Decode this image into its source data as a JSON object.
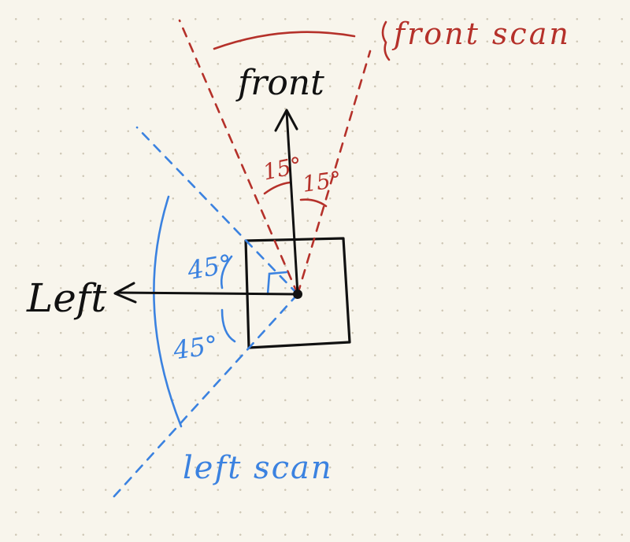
{
  "labels": {
    "front": "front",
    "left": "Left",
    "front_scan": "front scan",
    "left_scan": "left scan",
    "angle_front_left": "15°",
    "angle_front_right": "15°",
    "angle_left_upper": "45°",
    "angle_left_lower": "45°"
  },
  "colors": {
    "background": "#f8f5ec",
    "ink": "#111111",
    "front_scan": "#b5312a",
    "left_scan": "#3b82e0"
  },
  "icons": {
    "front_arrow": "arrow-up-icon",
    "left_arrow": "arrow-left-icon",
    "right_angle": "right-angle-icon",
    "origin": "dot-icon"
  }
}
